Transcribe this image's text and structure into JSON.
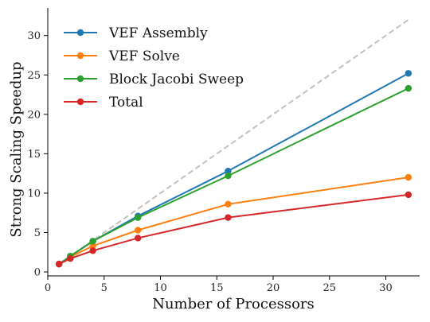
{
  "chart_data": {
    "type": "line",
    "xlabel": "Number of Processors",
    "ylabel": "Strong Scaling Speedup",
    "xlim": [
      0,
      33
    ],
    "ylim": [
      -0.5,
      33.5
    ],
    "xticks": [
      0,
      5,
      10,
      15,
      20,
      25,
      30
    ],
    "yticks": [
      0,
      5,
      10,
      15,
      20,
      25,
      30
    ],
    "grid": false,
    "legend_position": "top-left",
    "x": [
      1,
      2,
      4,
      8,
      16,
      32
    ],
    "ideal_line": {
      "x": [
        1,
        32
      ],
      "y": [
        1,
        32
      ],
      "color": "#c0c0c0",
      "style": "dashed"
    },
    "series": [
      {
        "name": "VEF Assembly",
        "color": "#1f77b4",
        "values": [
          1.0,
          2.0,
          3.9,
          7.1,
          12.8,
          25.2
        ]
      },
      {
        "name": "VEF Solve",
        "color": "#ff7f0e",
        "values": [
          1.0,
          1.9,
          3.3,
          5.3,
          8.6,
          12.0
        ]
      },
      {
        "name": "Block Jacobi Sweep",
        "color": "#2ca02c",
        "values": [
          1.0,
          2.0,
          3.9,
          6.9,
          12.2,
          23.3
        ]
      },
      {
        "name": "Total",
        "color": "#d62728",
        "values": [
          1.0,
          1.7,
          2.7,
          4.3,
          6.9,
          9.8
        ]
      }
    ]
  }
}
